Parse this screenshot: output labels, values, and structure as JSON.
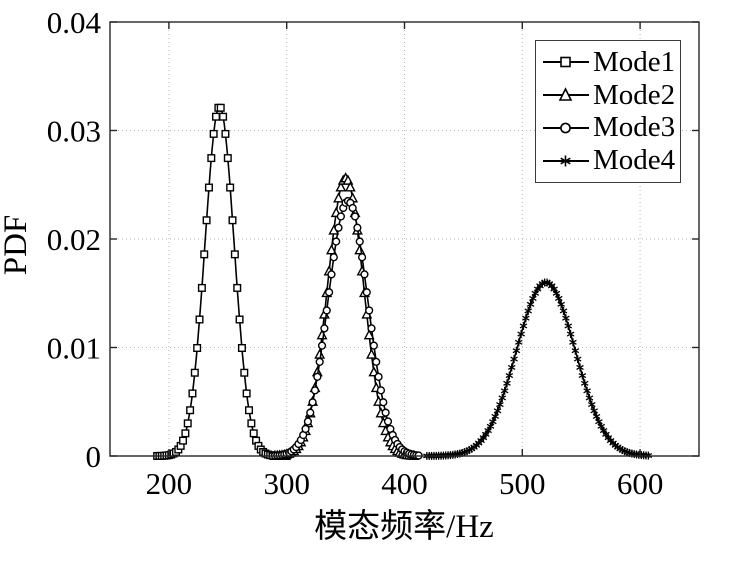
{
  "figure": {
    "background": "#ffffff",
    "axis_color": "#262626",
    "grid_color": "#b8b8b8",
    "line_color": "#000000",
    "marker_fill": "#ffffff"
  },
  "chart_data": {
    "type": "line",
    "title": "",
    "xlabel": "模态频率/Hz",
    "ylabel": "PDF",
    "xlim": [
      150,
      650
    ],
    "ylim": [
      0,
      0.04
    ],
    "xticks": [
      200,
      300,
      400,
      500,
      600
    ],
    "yticks": [
      0,
      0.01,
      0.02,
      0.03,
      0.04
    ],
    "xticklabels": [
      "200",
      "300",
      "400",
      "500",
      "600"
    ],
    "yticklabels": [
      "0",
      "0.01",
      "0.02",
      "0.03",
      "0.04"
    ],
    "grid": true,
    "grid_style": "dotted",
    "legend_position": "top-right",
    "series": [
      {
        "name": "Mode1",
        "marker": "square",
        "shape": "gaussian",
        "mean": 243,
        "sigma": 12.4,
        "peak": 0.0322,
        "x_range": [
          190,
          300
        ]
      },
      {
        "name": "Mode2",
        "marker": "triangle",
        "shape": "gaussian",
        "mean": 350,
        "sigma": 15.5,
        "peak": 0.0256,
        "x_range": [
          290,
          408
        ]
      },
      {
        "name": "Mode3",
        "marker": "circle",
        "shape": "gaussian",
        "mean": 352,
        "sigma": 17.0,
        "peak": 0.0235,
        "x_range": [
          288,
          412
        ]
      },
      {
        "name": "Mode4",
        "marker": "asterisk",
        "shape": "gaussian",
        "mean": 520,
        "sigma": 25.0,
        "peak": 0.016,
        "x_range": [
          419,
          608
        ]
      }
    ]
  }
}
